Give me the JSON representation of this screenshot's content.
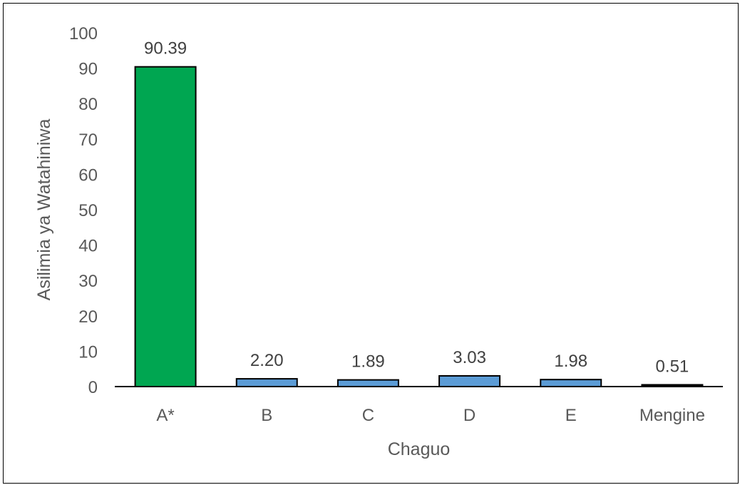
{
  "chart_data": {
    "type": "bar",
    "categories": [
      "A*",
      "B",
      "C",
      "D",
      "E",
      "Mengine"
    ],
    "values": [
      90.39,
      2.2,
      1.89,
      3.03,
      1.98,
      0.51
    ],
    "value_labels": [
      "90.39",
      "2.20",
      "1.89",
      "3.03",
      "1.98",
      "0.51"
    ],
    "bar_colors": [
      "#00a651",
      "#5b9bd5",
      "#5b9bd5",
      "#5b9bd5",
      "#5b9bd5",
      "#000000"
    ],
    "title": "",
    "xlabel": "Chaguo",
    "ylabel": "Asilimia ya Watahiniwa",
    "ylim": [
      0,
      100
    ],
    "yticks": [
      0,
      10,
      20,
      30,
      40,
      50,
      60,
      70,
      80,
      90,
      100
    ],
    "grid": false,
    "legend": "none"
  }
}
